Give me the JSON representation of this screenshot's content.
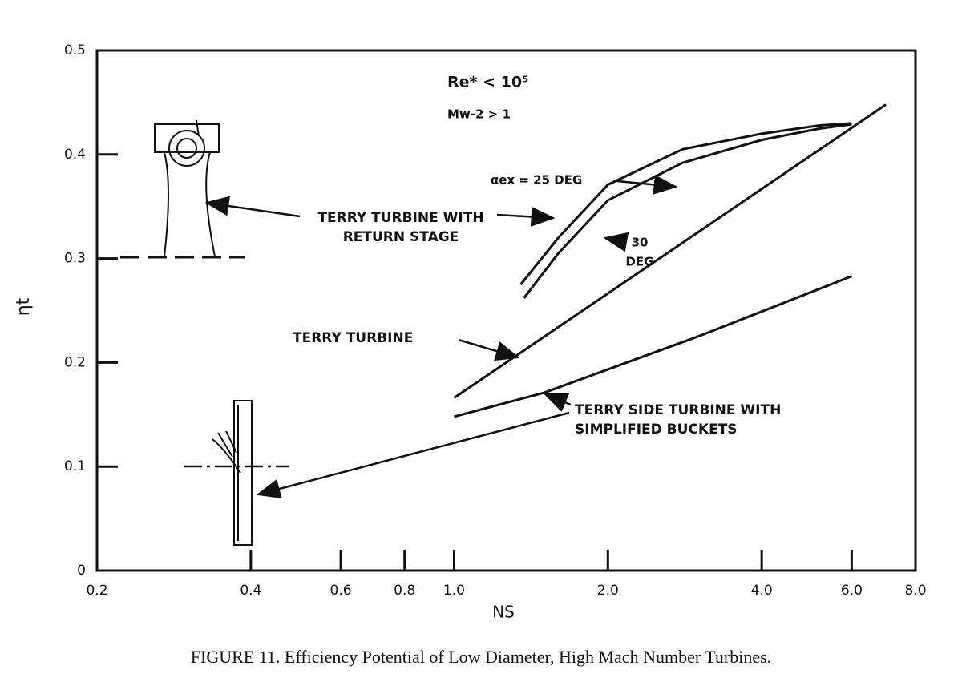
{
  "chart_data": {
    "type": "line",
    "x_label": "NS",
    "y_label": "ηt",
    "caption": "FIGURE 11.  Efficiency Potential of Low Diameter, High Mach Number Turbines.",
    "log_x": true,
    "xlim": [
      0.2,
      8
    ],
    "xticks": [
      0.2,
      0.4,
      0.6,
      0.8,
      {
        "value": 1,
        "label": "1.0"
      },
      {
        "value": 2,
        "label": "2.0"
      },
      {
        "value": 4,
        "label": "4.0"
      },
      {
        "value": 6,
        "label": "6.0"
      },
      {
        "value": 8,
        "label": "8.0"
      }
    ],
    "ylim": [
      0,
      0.5
    ],
    "yticks": [
      0,
      0.1,
      0.2,
      0.3,
      0.4,
      0.5
    ],
    "color": "#111111",
    "series": [
      {
        "x": [
          1.35,
          1.6,
          2.0,
          2.8,
          4.0,
          5.2,
          6.0
        ],
        "values": [
          0.275,
          0.32,
          0.371,
          0.405,
          0.42,
          0.428,
          0.43
        ]
      },
      {
        "x": [
          1.37,
          1.6,
          2.0,
          2.8,
          4.0,
          5.2,
          6.0
        ],
        "values": [
          0.262,
          0.305,
          0.356,
          0.392,
          0.414,
          0.425,
          0.429
        ]
      },
      {
        "x": [
          1.0,
          7.0
        ],
        "values": [
          0.166,
          0.448
        ]
      },
      {
        "x": [
          1.0,
          1.5,
          3.0,
          6.0
        ],
        "values": [
          0.148,
          0.171,
          0.225,
          0.283
        ]
      }
    ],
    "annotations": [
      {
        "lines": [
          "Re* < 10⁵"
        ]
      },
      {
        "lines": [
          "Mw-2 > 1"
        ]
      },
      {
        "lines": [
          "αex = 25 DEG"
        ]
      },
      {
        "lines": [
          "30",
          "DEG"
        ]
      },
      {
        "lines": [
          "TERRY TURBINE WITH",
          "RETURN STAGE"
        ]
      },
      {
        "lines": [
          "TERRY TURBINE"
        ]
      },
      {
        "lines": [
          "TERRY SIDE TURBINE WITH",
          "SIMPLIFIED BUCKETS"
        ]
      }
    ]
  }
}
